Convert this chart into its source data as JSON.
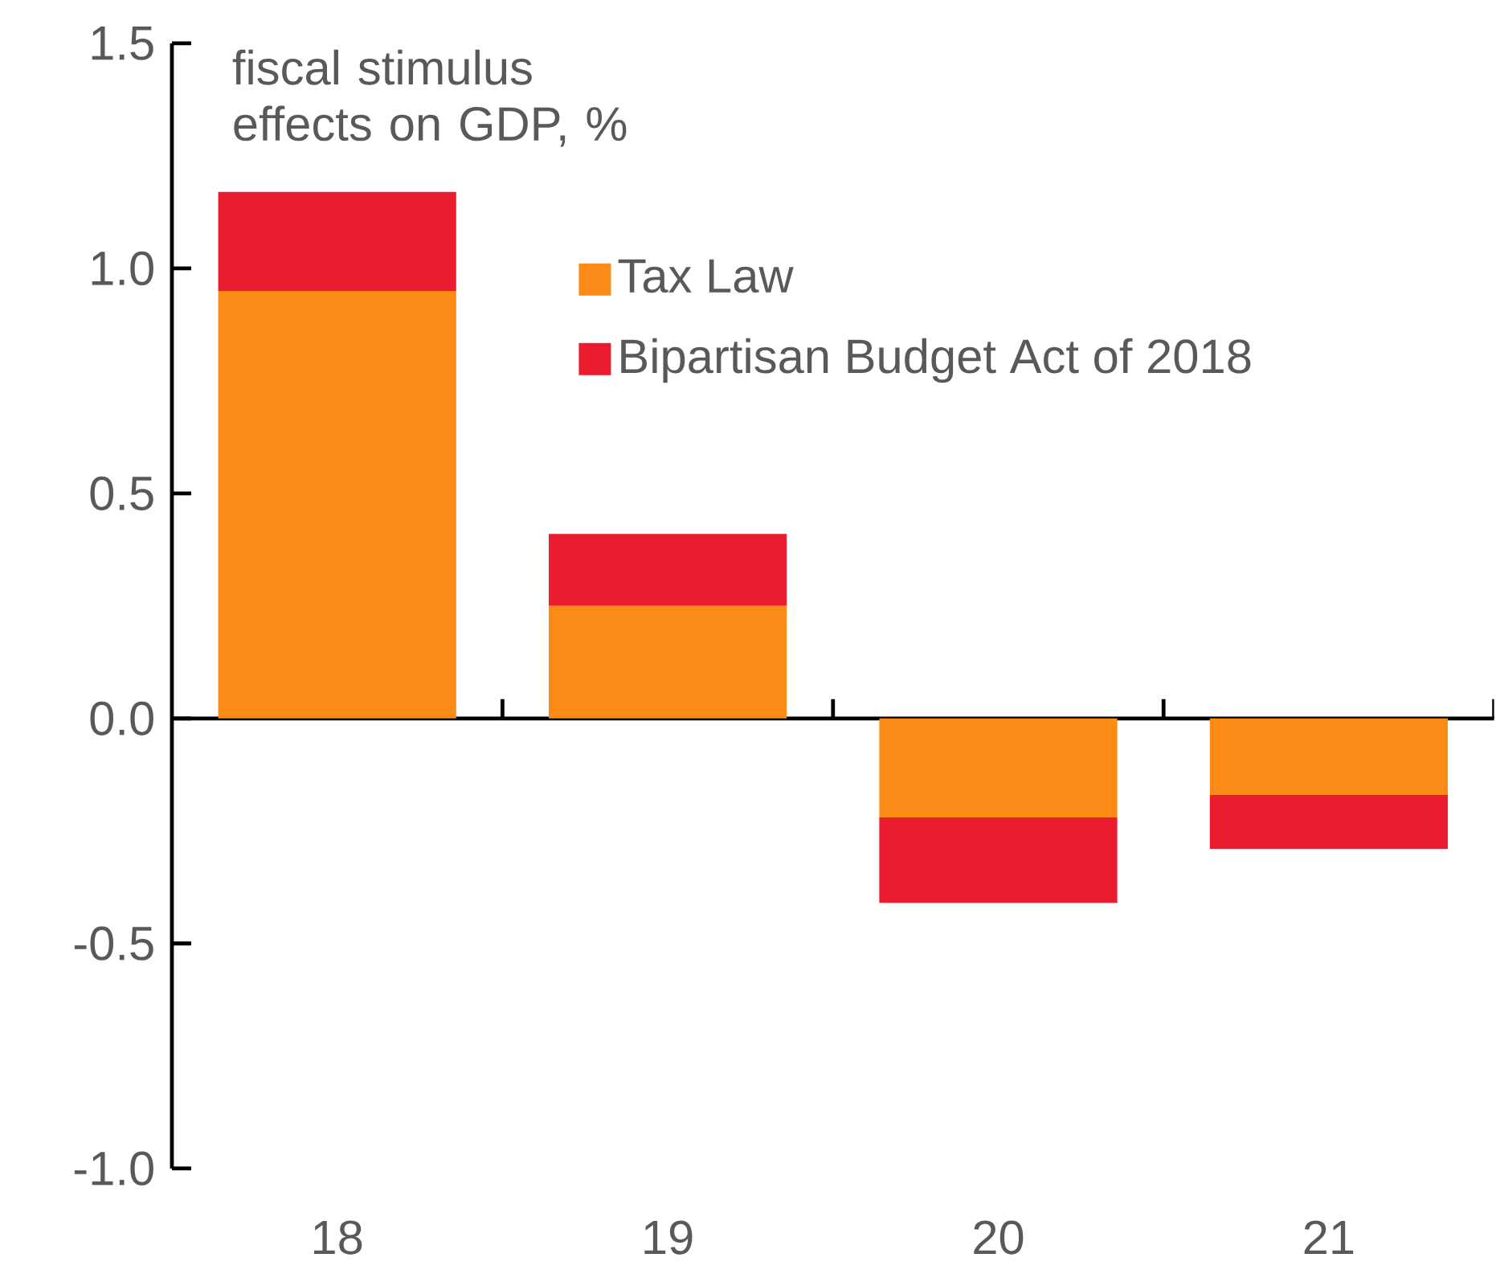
{
  "chart_data": {
    "type": "bar",
    "stacked": true,
    "title": "fiscal stimulus effects on GDP, %",
    "categories": [
      "18",
      "19",
      "20",
      "21"
    ],
    "series": [
      {
        "name": "Tax Law",
        "color": "#fb8a17",
        "values": [
          0.95,
          0.25,
          -0.22,
          -0.17
        ]
      },
      {
        "name": "Bipartisan Budget Act of 2018",
        "color": "#ec1c30",
        "values": [
          0.22,
          0.16,
          -0.19,
          -0.12
        ]
      }
    ],
    "ylim": [
      -1.0,
      1.5
    ],
    "yticks": [
      {
        "value": -1,
        "label": "-1.0"
      },
      {
        "value": -0.5,
        "label": "-0.5"
      },
      {
        "value": 0,
        "label": "0.0"
      },
      {
        "value": 0.5,
        "label": "0.5"
      },
      {
        "value": 1,
        "label": "1.0"
      },
      1.5
    ],
    "legend": "top right"
  }
}
